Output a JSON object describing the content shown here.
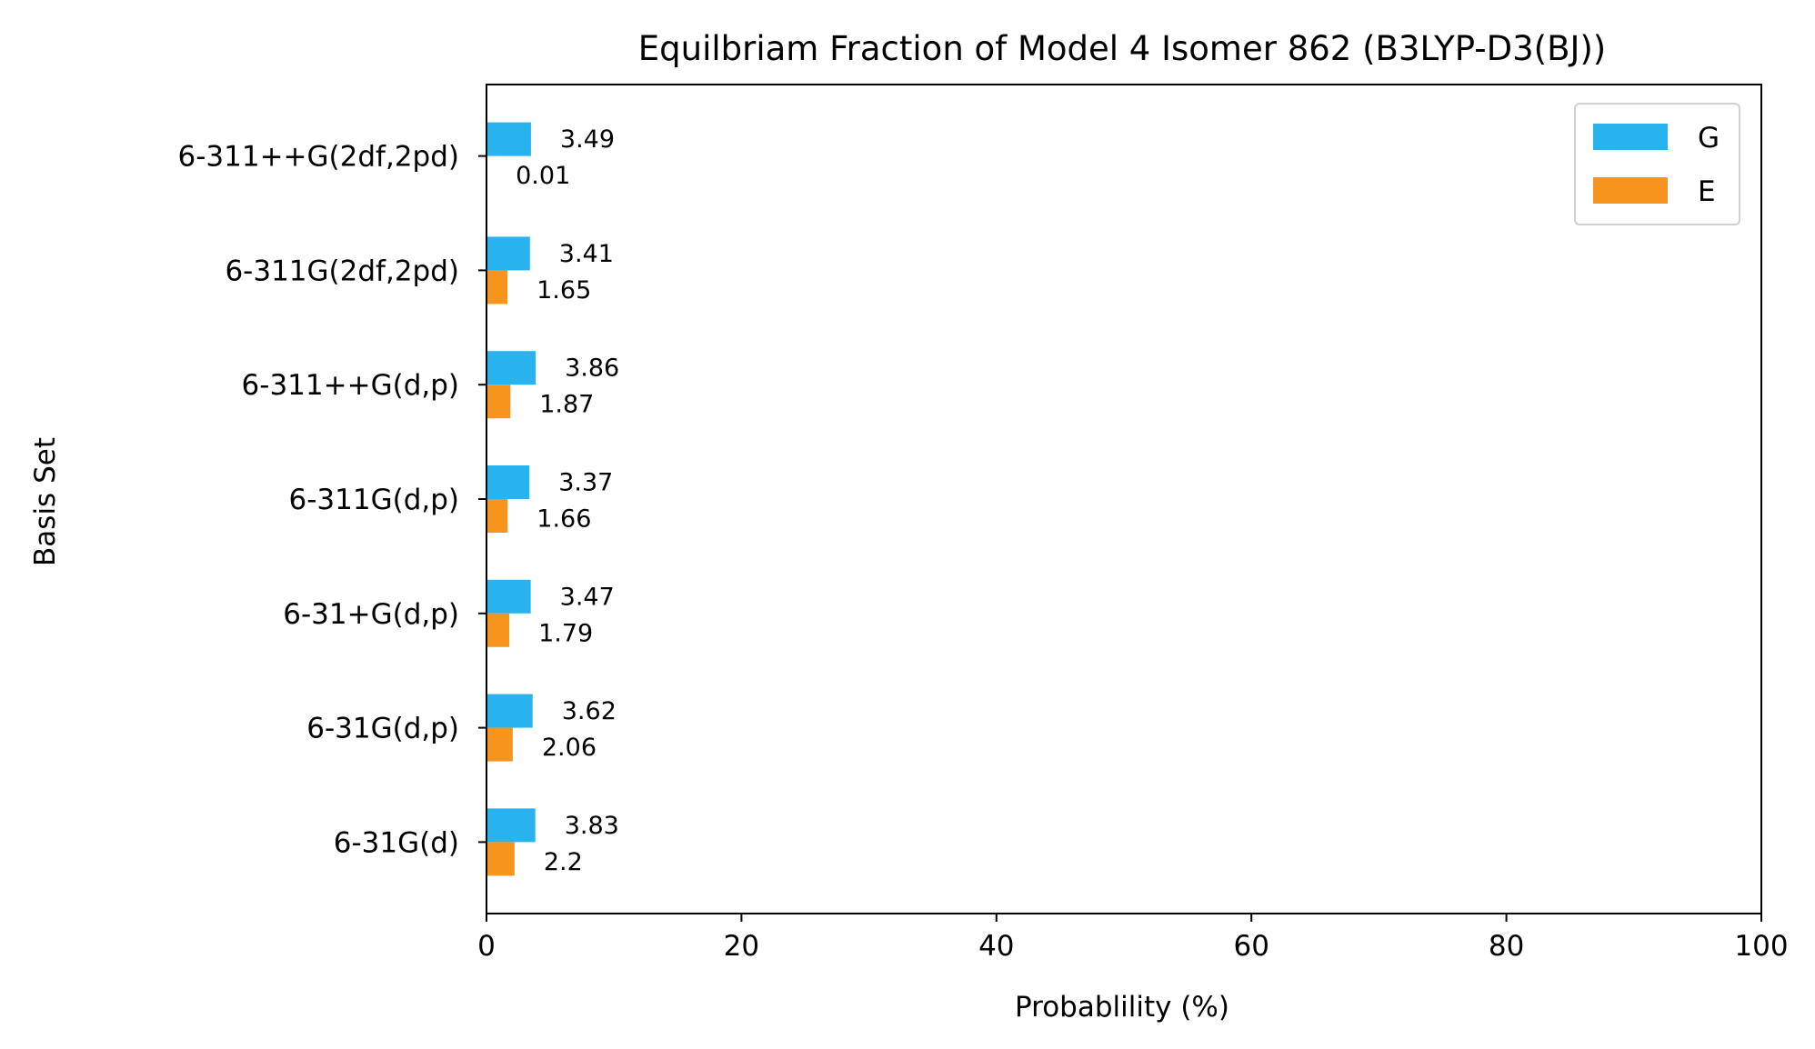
{
  "chart_data": {
    "type": "bar",
    "orientation": "horizontal",
    "title": "Equilbriam Fraction of Model 4 Isomer 862 (B3LYP-D3(BJ))",
    "xlabel": "Probablility (%)",
    "ylabel": "Basis Set",
    "xlim": [
      0,
      100
    ],
    "xticks": [
      "0",
      "20",
      "40",
      "60",
      "80",
      "100"
    ],
    "categories": [
      "6-31G(d)",
      "6-31G(d,p)",
      "6-31+G(d,p)",
      "6-311G(d,p)",
      "6-311++G(d,p)",
      "6-311G(2df,2pd)",
      "6-311++G(2df,2pd)"
    ],
    "series": [
      {
        "name": "G",
        "color": "#29B3EE",
        "values": [
          3.83,
          3.62,
          3.47,
          3.37,
          3.86,
          3.41,
          3.49
        ],
        "labels": [
          "3.83",
          "3.62",
          "3.47",
          "3.37",
          "3.86",
          "3.41",
          "3.49"
        ]
      },
      {
        "name": "E",
        "color": "#F7941D",
        "values": [
          2.2,
          2.06,
          1.79,
          1.66,
          1.87,
          1.65,
          0.01
        ],
        "labels": [
          "2.2",
          "2.06",
          "1.79",
          "1.66",
          "1.87",
          "1.65",
          "0.01"
        ]
      }
    ],
    "legend_position": "top-right",
    "grid": false
  }
}
